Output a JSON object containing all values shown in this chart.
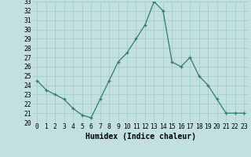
{
  "x": [
    0,
    1,
    2,
    3,
    4,
    5,
    6,
    7,
    8,
    9,
    10,
    11,
    12,
    13,
    14,
    15,
    16,
    17,
    18,
    19,
    20,
    21,
    22,
    23
  ],
  "y": [
    24.5,
    23.5,
    23.0,
    22.5,
    21.5,
    20.8,
    20.5,
    22.5,
    24.5,
    26.5,
    27.5,
    29.0,
    30.5,
    33.0,
    32.0,
    26.5,
    26.0,
    27.0,
    25.0,
    24.0,
    22.5,
    21.0,
    21.0,
    21.0
  ],
  "xlabel": "Humidex (Indice chaleur)",
  "ylim": [
    20,
    33
  ],
  "yticks": [
    20,
    21,
    22,
    23,
    24,
    25,
    26,
    27,
    28,
    29,
    30,
    31,
    32,
    33
  ],
  "xticks": [
    0,
    1,
    2,
    3,
    4,
    5,
    6,
    7,
    8,
    9,
    10,
    11,
    12,
    13,
    14,
    15,
    16,
    17,
    18,
    19,
    20,
    21,
    22,
    23
  ],
  "line_color": "#2e7d6e",
  "bg_color": "#c2e0e0",
  "grid_color": "#a0c8c8",
  "xlabel_fontsize": 7,
  "tick_fontsize": 5.8,
  "marker": "+"
}
